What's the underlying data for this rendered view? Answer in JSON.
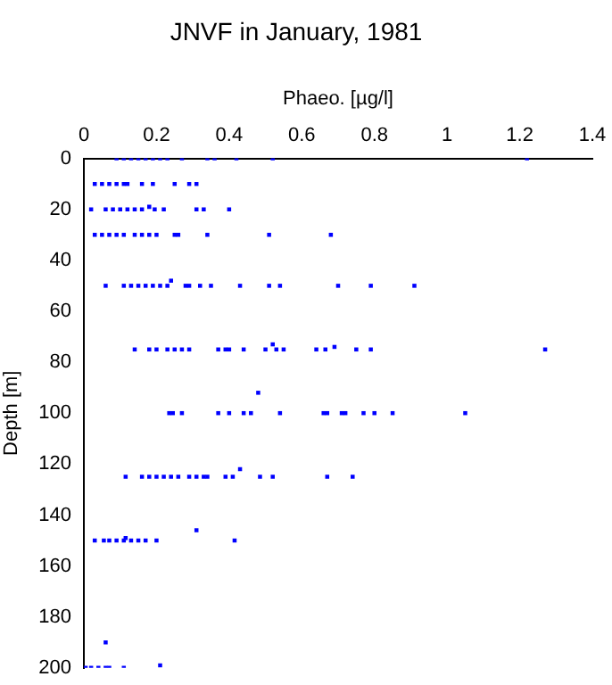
{
  "chart_data": {
    "type": "scatter",
    "title": "JNVF in January, 1981",
    "xlabel": "Phaeo. [µg/l]",
    "ylabel": "Depth [m]",
    "x": [
      0.09,
      0.11,
      0.13,
      0.15,
      0.17,
      0.19,
      0.21,
      0.23,
      0.27,
      0.34,
      0.36,
      0.42,
      0.52,
      1.22,
      0.03,
      0.05,
      0.07,
      0.09,
      0.11,
      0.12,
      0.16,
      0.19,
      0.25,
      0.29,
      0.31,
      0.02,
      0.06,
      0.08,
      0.1,
      0.12,
      0.14,
      0.16,
      0.18,
      0.195,
      0.22,
      0.31,
      0.33,
      0.4,
      0.03,
      0.05,
      0.07,
      0.09,
      0.11,
      0.14,
      0.16,
      0.18,
      0.2,
      0.25,
      0.26,
      0.34,
      0.51,
      0.68,
      0.06,
      0.11,
      0.13,
      0.15,
      0.17,
      0.19,
      0.21,
      0.23,
      0.24,
      0.28,
      0.29,
      0.32,
      0.35,
      0.43,
      0.51,
      0.54,
      0.7,
      0.79,
      0.91,
      0.14,
      0.18,
      0.2,
      0.23,
      0.25,
      0.27,
      0.29,
      0.37,
      0.39,
      0.4,
      0.44,
      0.5,
      0.52,
      0.53,
      0.55,
      0.64,
      0.665,
      0.69,
      0.75,
      0.79,
      1.27,
      0.48,
      0.235,
      0.245,
      0.27,
      0.37,
      0.4,
      0.44,
      0.46,
      0.54,
      0.66,
      0.67,
      0.71,
      0.72,
      0.77,
      0.8,
      0.85,
      1.05,
      0.43,
      0.115,
      0.16,
      0.18,
      0.2,
      0.22,
      0.24,
      0.26,
      0.29,
      0.31,
      0.33,
      0.34,
      0.39,
      0.41,
      0.485,
      0.52,
      0.67,
      0.74,
      0.31,
      0.03,
      0.055,
      0.07,
      0.09,
      0.11,
      0.115,
      0.13,
      0.15,
      0.17,
      0.2,
      0.415,
      0.06,
      0.005,
      0.02,
      0.04,
      0.06,
      0.07,
      0.11,
      0.21
    ],
    "values": [
      0,
      0,
      0,
      0,
      0,
      0,
      0,
      0,
      0,
      0,
      0,
      0,
      0,
      0,
      10,
      10,
      10,
      10,
      10,
      10,
      10,
      10,
      10,
      10,
      10,
      20,
      20,
      20,
      20,
      20,
      20,
      20,
      19,
      20,
      20,
      20,
      20,
      20,
      30,
      30,
      30,
      30,
      30,
      30,
      30,
      30,
      30,
      30,
      30,
      30,
      30,
      30,
      50,
      50,
      50,
      50,
      50,
      50,
      50,
      50,
      48,
      50,
      50,
      50,
      50,
      50,
      50,
      50,
      50,
      50,
      50,
      75,
      75,
      75,
      75,
      75,
      75,
      75,
      75,
      75,
      75,
      75,
      75,
      73,
      75,
      75,
      75,
      75,
      74,
      75,
      75,
      75,
      92,
      100,
      100,
      100,
      100,
      100,
      100,
      100,
      100,
      100,
      100,
      100,
      100,
      100,
      100,
      100,
      100,
      122,
      125,
      125,
      125,
      125,
      125,
      125,
      125,
      125,
      125,
      125,
      125,
      125,
      125,
      125,
      125,
      125,
      125,
      146,
      150,
      150,
      150,
      150,
      150,
      149,
      150,
      150,
      150,
      150,
      150,
      190,
      200,
      200,
      200,
      200,
      200,
      200,
      199
    ],
    "color": "#0000ff",
    "marker": "square",
    "xlim": [
      0,
      1.4
    ],
    "xticks": [
      0,
      0.2,
      0.4,
      0.6,
      0.8,
      1,
      1.2,
      1.4
    ],
    "ylim": [
      200,
      0
    ],
    "yticks": [
      0,
      20,
      40,
      60,
      80,
      100,
      120,
      140,
      160,
      180,
      200
    ],
    "grid": false,
    "legend": false
  }
}
